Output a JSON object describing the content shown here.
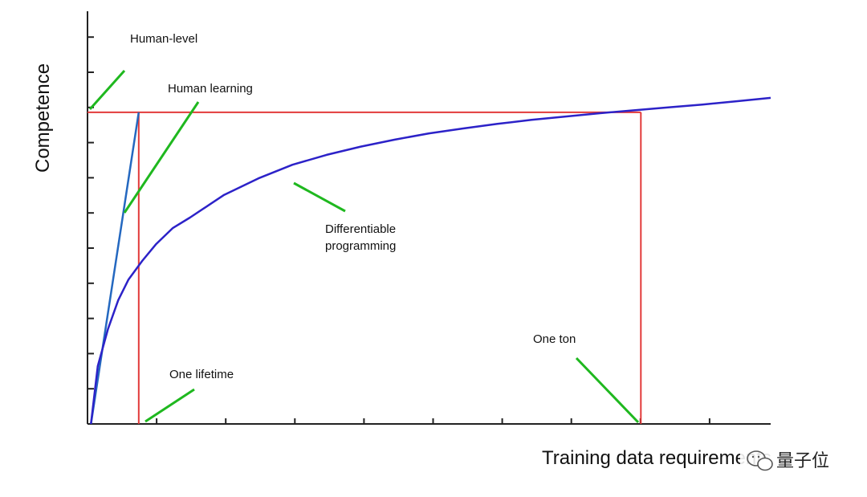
{
  "chart_data": {
    "type": "line",
    "title": "",
    "xlabel": "Training data requirements",
    "ylabel": "Competence",
    "xlim": [
      0,
      100
    ],
    "ylim": [
      0,
      100
    ],
    "grid": false,
    "legend": "none",
    "series": [
      {
        "key": "human",
        "color": "#2468c0",
        "x": [
          0.5,
          7.5
        ],
        "y": [
          0,
          75.5
        ]
      },
      {
        "key": "dp",
        "color": "#2c22c8",
        "x": [
          0.5,
          1.5,
          3,
          4.5,
          6,
          8,
          10,
          12.5,
          15,
          20,
          25,
          30,
          35,
          40,
          45,
          50,
          55,
          60,
          65,
          70,
          75,
          80,
          85,
          90,
          95,
          100
        ],
        "y": [
          0,
          14,
          23,
          30,
          35,
          39.5,
          43.5,
          47.5,
          50,
          55.5,
          59.5,
          62.8,
          65.2,
          67.2,
          68.9,
          70.4,
          71.6,
          72.7,
          73.7,
          74.5,
          75.3,
          76,
          76.7,
          77.4,
          78.2,
          79
        ]
      }
    ],
    "reference_lines": [
      {
        "key": "human-level",
        "orientation": "horizontal",
        "value": 75.5,
        "from": 0,
        "to": 81,
        "color": "#e23a3a"
      },
      {
        "key": "one-lifetime",
        "orientation": "vertical",
        "value": 7.5,
        "from": 0,
        "to": 75.5,
        "color": "#e23a3a"
      },
      {
        "key": "one-ton",
        "orientation": "vertical",
        "value": 81,
        "from": 0,
        "to": 75.5,
        "color": "#e23a3a"
      }
    ],
    "annotations": [
      {
        "key": "human_level",
        "text": "Human-level"
      },
      {
        "key": "human_learning",
        "text": "Human learning"
      },
      {
        "key": "dp_line1",
        "text": "Differentiable"
      },
      {
        "key": "dp_line2",
        "text": "programming"
      },
      {
        "key": "one_lifetime",
        "text": "One lifetime"
      },
      {
        "key": "one_ton",
        "text": "One ton"
      }
    ],
    "annotation_color": "#1fb81f"
  },
  "watermark": {
    "text": "量子位"
  }
}
